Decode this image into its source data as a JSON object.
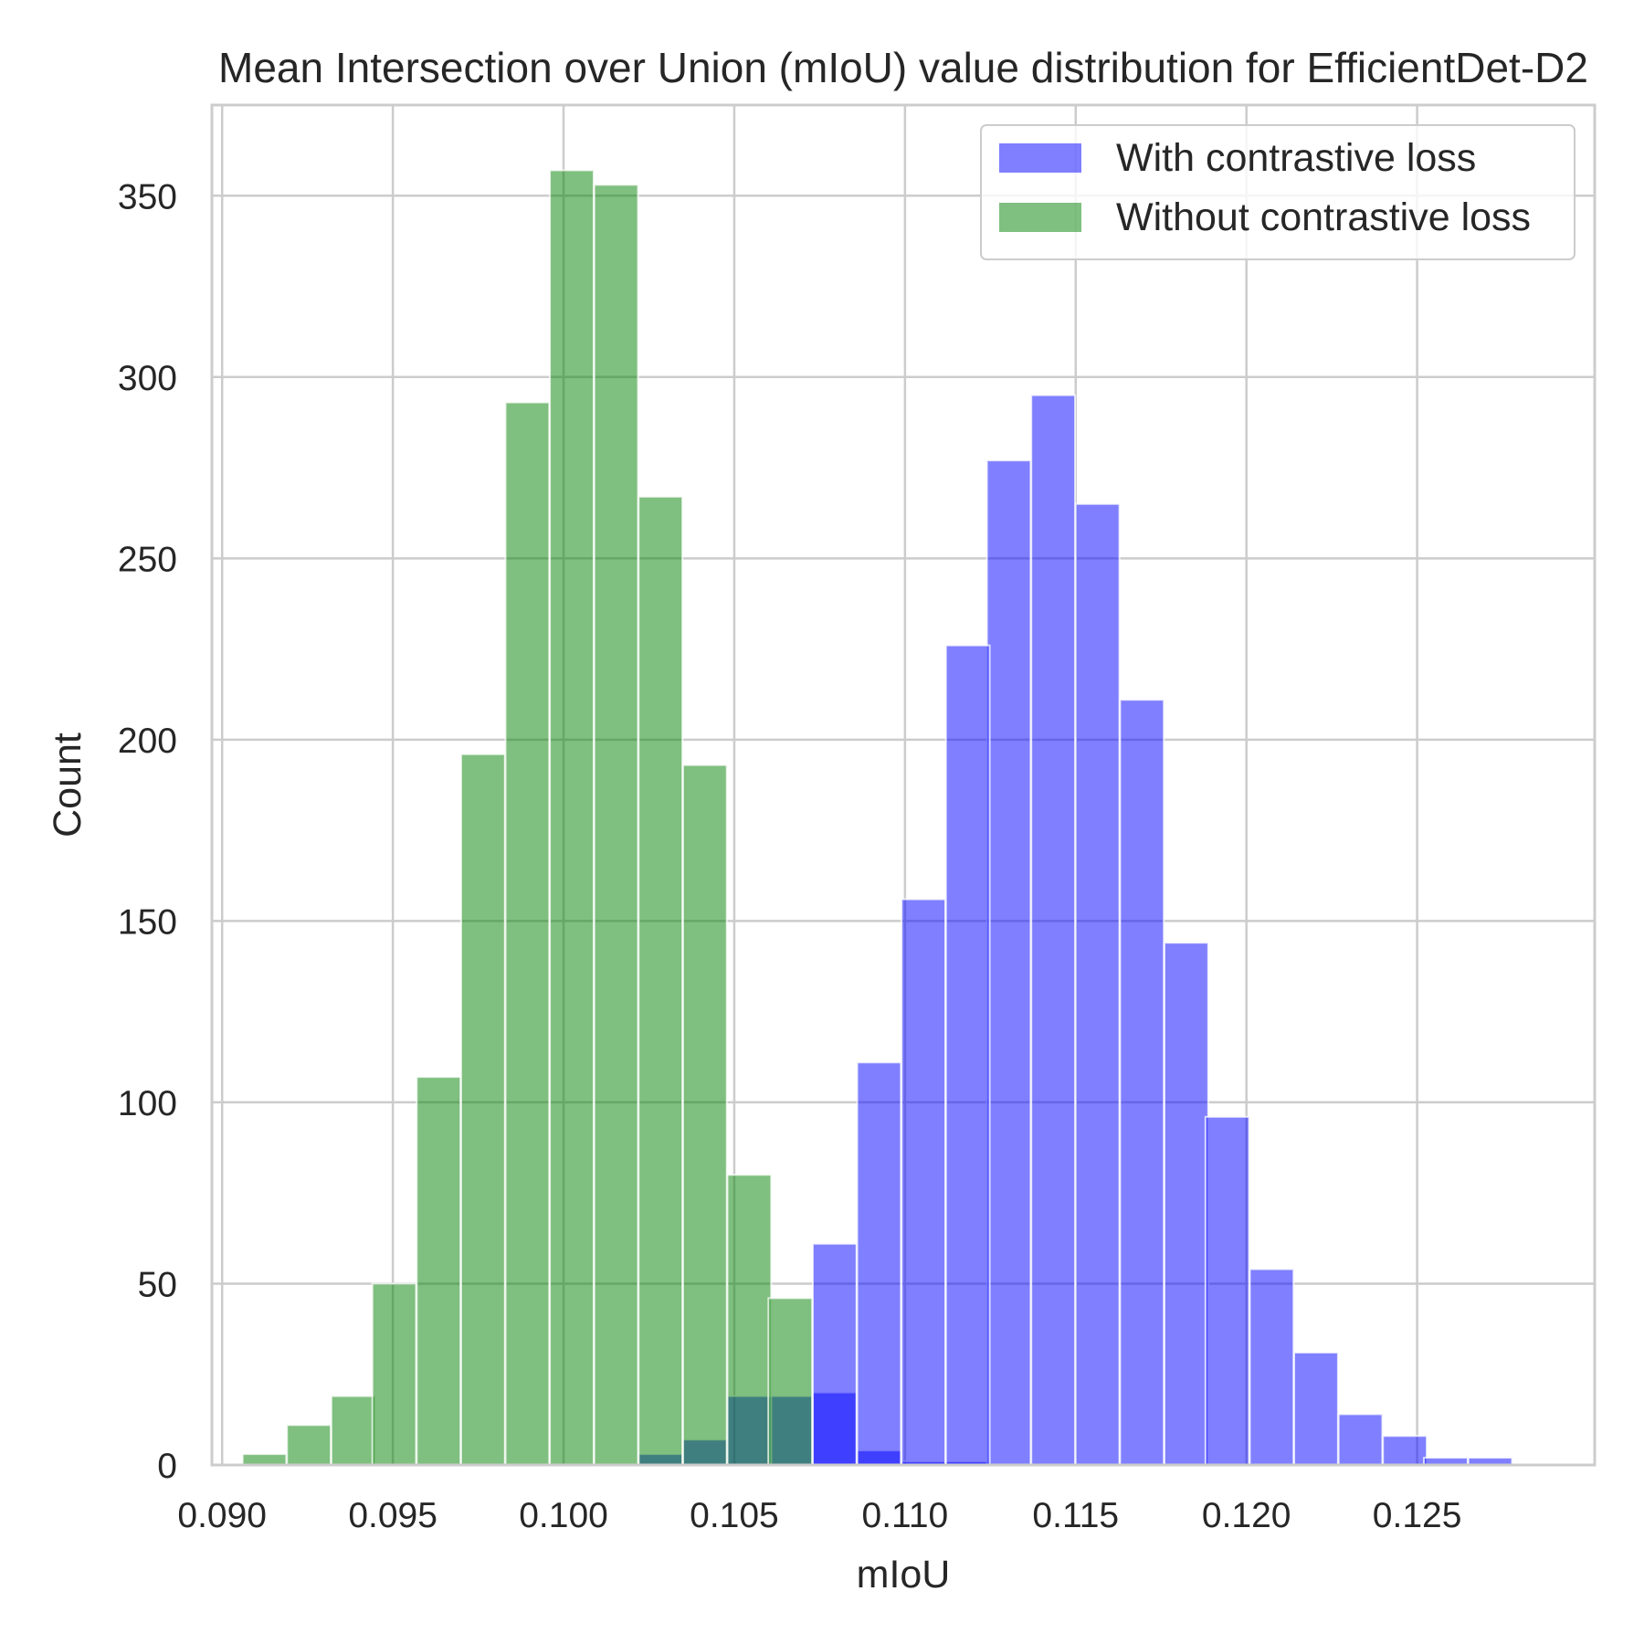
{
  "chart_data": {
    "type": "histogram",
    "title": "Mean Intersection over Union (mIoU) value distribution for EfficientDet-D2",
    "xlabel": "mIoU",
    "ylabel": "Count",
    "xlim": [
      0.0897,
      0.1302
    ],
    "ylim": [
      0,
      375
    ],
    "x_ticks": [
      "0.090",
      "0.095",
      "0.100",
      "0.105",
      "0.110",
      "0.115",
      "0.120",
      "0.125"
    ],
    "y_ticks": [
      "0",
      "50",
      "100",
      "150",
      "200",
      "250",
      "300",
      "350"
    ],
    "grid": true,
    "legend_position": "top-right",
    "bin_width": 0.00128,
    "series": [
      {
        "name": "With contrastive loss",
        "color": "#0000ff",
        "opacity": 0.5,
        "bin_starts": [
          0.1022,
          0.1035,
          0.1048,
          0.106,
          0.1073,
          0.1086,
          0.1099,
          0.1112,
          0.1124,
          0.1137,
          0.115,
          0.1163,
          0.1176,
          0.1188,
          0.1201,
          0.1214,
          0.1227,
          0.124,
          0.1252,
          0.1265
        ],
        "values": [
          3,
          7,
          19,
          19,
          20,
          4,
          1,
          1,
          277,
          295,
          265,
          211,
          144,
          96,
          54,
          31,
          14,
          8,
          2,
          2
        ],
        "extra_bins": [
          {
            "bin_start": 0.1073,
            "value": 61
          },
          {
            "bin_start": 0.1086,
            "value": 111
          },
          {
            "bin_start": 0.1099,
            "value": 156
          },
          {
            "bin_start": 0.1112,
            "value": 226
          }
        ]
      },
      {
        "name": "Without contrastive loss",
        "color": "#008000",
        "opacity": 0.5,
        "bin_starts": [
          0.0906,
          0.0919,
          0.0932,
          0.0944,
          0.0957,
          0.097,
          0.0983,
          0.0996,
          0.1009,
          0.1022,
          0.1035,
          0.1048,
          0.106
        ],
        "values": [
          3,
          11,
          19,
          50,
          107,
          196,
          293,
          357,
          353,
          267,
          193,
          80,
          46
        ]
      }
    ]
  }
}
